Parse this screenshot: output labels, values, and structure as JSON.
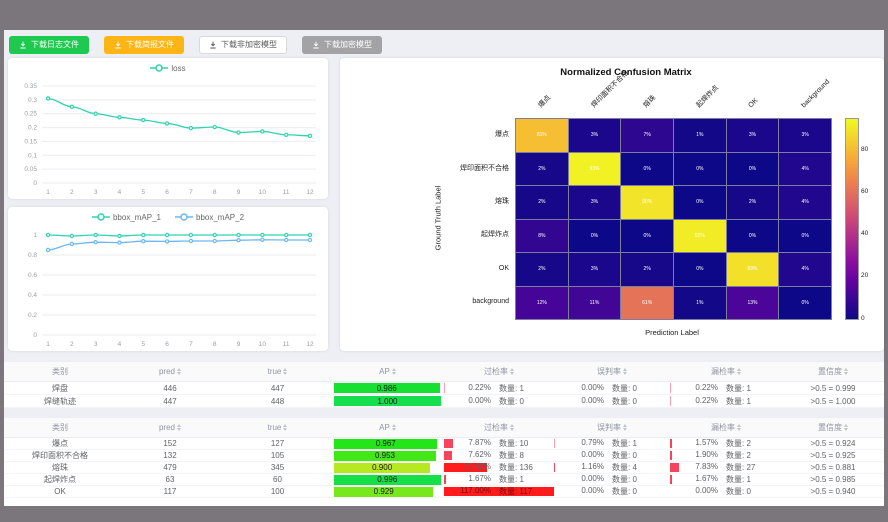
{
  "buttons": [
    {
      "name": "download-log-button",
      "label": "下载日志文件",
      "style": "green",
      "icon": "download-icon"
    },
    {
      "name": "download-report-button",
      "label": "下载简报文件",
      "style": "orange",
      "icon": "download-icon"
    },
    {
      "name": "download-unencrypted-model-button",
      "label": "下载非加密模型",
      "style": "white",
      "icon": "download-icon"
    },
    {
      "name": "download-encrypted-model-button",
      "label": "下载加密模型",
      "style": "gray",
      "icon": "download-icon"
    }
  ],
  "chart_data": [
    {
      "type": "line",
      "title": "",
      "xlabel": "",
      "ylabel": "",
      "x": [
        1,
        2,
        3,
        4,
        5,
        6,
        7,
        8,
        9,
        10,
        11,
        12
      ],
      "yticks": [
        0,
        0.05,
        0.1,
        0.15,
        0.2,
        0.25,
        0.3,
        0.35
      ],
      "ylim": [
        0,
        0.35
      ],
      "grid": "horizontal",
      "legend_position": "top",
      "series": [
        {
          "name": "loss",
          "color": "#2fd3b0",
          "values": [
            0.305,
            0.275,
            0.25,
            0.237,
            0.227,
            0.215,
            0.198,
            0.202,
            0.182,
            0.186,
            0.174,
            0.17
          ]
        }
      ]
    },
    {
      "type": "line",
      "title": "",
      "xlabel": "",
      "ylabel": "",
      "x": [
        1,
        2,
        3,
        4,
        5,
        6,
        7,
        8,
        9,
        10,
        11,
        12
      ],
      "yticks": [
        0,
        0.2,
        0.4,
        0.6,
        0.8,
        1
      ],
      "ylim": [
        0,
        1
      ],
      "grid": "horizontal",
      "legend_position": "top",
      "series": [
        {
          "name": "bbox_mAP_1",
          "color": "#2fd3b0",
          "values": [
            1,
            0.99,
            1,
            0.99,
            1,
            1,
            1,
            1,
            1,
            1,
            1,
            1
          ]
        },
        {
          "name": "bbox_mAP_2",
          "color": "#6ab7f5",
          "values": [
            0.85,
            0.91,
            0.928,
            0.924,
            0.938,
            0.936,
            0.94,
            0.94,
            0.948,
            0.952,
            0.95,
            0.95
          ]
        }
      ]
    },
    {
      "type": "heatmap",
      "title": "Normalized Confusion Matrix",
      "xlabel": "Prediction Label",
      "ylabel": "Ground Truth Label",
      "labels": [
        "爆点",
        "焊印面积不合格",
        "熔珠",
        "起焊炸点",
        "OK",
        "background"
      ],
      "matrix_pct": [
        [
          81,
          3,
          7,
          1,
          3,
          3
        ],
        [
          2,
          93,
          0,
          0,
          0,
          4
        ],
        [
          2,
          3,
          90,
          0,
          2,
          4
        ],
        [
          8,
          0,
          0,
          92,
          0,
          0
        ],
        [
          2,
          3,
          2,
          0,
          89,
          4
        ],
        [
          12,
          11,
          61,
          1,
          13,
          0
        ]
      ],
      "vmax": 95,
      "colormap": "plasma",
      "colorbar_ticks": [
        80,
        60,
        40,
        20,
        0
      ]
    }
  ],
  "tables": {
    "count_label": "数量:",
    "columns": [
      {
        "key": "cat",
        "label": "类别",
        "sortable": false
      },
      {
        "key": "pred",
        "label": "pred",
        "sortable": true
      },
      {
        "key": "true",
        "label": "true",
        "sortable": true
      },
      {
        "key": "ap",
        "label": "AP",
        "sortable": true
      },
      {
        "key": "over",
        "label": "过检率",
        "sortable": true
      },
      {
        "key": "mis",
        "label": "误判率",
        "sortable": true
      },
      {
        "key": "miss",
        "label": "漏检率",
        "sortable": true
      },
      {
        "key": "conf",
        "label": "置信度",
        "sortable": true
      }
    ],
    "groups": [
      {
        "rows": [
          {
            "cat": "焊盘",
            "pred": "446",
            "true": "447",
            "ap": "0.986",
            "over": {
              "pct": "0.22",
              "count": "1"
            },
            "mis": {
              "pct": "0.00",
              "count": "0"
            },
            "miss": {
              "pct": "0.22",
              "count": "1"
            },
            "conf": ">0.5 = 0.999"
          },
          {
            "cat": "焊缝轨迹",
            "pred": "447",
            "true": "448",
            "ap": "1.000",
            "over": {
              "pct": "0.00",
              "count": "0"
            },
            "mis": {
              "pct": "0.00",
              "count": "0"
            },
            "miss": {
              "pct": "0.22",
              "count": "1"
            },
            "conf": ">0.5 = 1.000"
          }
        ]
      },
      {
        "rows": [
          {
            "cat": "爆点",
            "pred": "152",
            "true": "127",
            "ap": "0.967",
            "over": {
              "pct": "7.87",
              "count": "10"
            },
            "mis": {
              "pct": "0.79",
              "count": "1"
            },
            "miss": {
              "pct": "1.57",
              "count": "2"
            },
            "conf": ">0.5 = 0.924"
          },
          {
            "cat": "焊印面积不合格",
            "pred": "132",
            "true": "105",
            "ap": "0.953",
            "over": {
              "pct": "7.62",
              "count": "8"
            },
            "mis": {
              "pct": "0.00",
              "count": "0"
            },
            "miss": {
              "pct": "1.90",
              "count": "2"
            },
            "conf": ">0.5 = 0.925"
          },
          {
            "cat": "熔珠",
            "pred": "479",
            "true": "345",
            "ap": "0.900",
            "over": {
              "pct": "39.42",
              "count": "136"
            },
            "mis": {
              "pct": "1.16",
              "count": "4"
            },
            "miss": {
              "pct": "7.83",
              "count": "27"
            },
            "conf": ">0.5 = 0.881"
          },
          {
            "cat": "起焊炸点",
            "pred": "63",
            "true": "60",
            "ap": "0.996",
            "over": {
              "pct": "1.67",
              "count": "1"
            },
            "mis": {
              "pct": "0.00",
              "count": "0"
            },
            "miss": {
              "pct": "1.67",
              "count": "1"
            },
            "conf": ">0.5 = 0.985"
          },
          {
            "cat": "OK",
            "pred": "117",
            "true": "100",
            "ap": "0.929",
            "over": {
              "pct": "117.00",
              "count": "117"
            },
            "mis": {
              "pct": "0.00",
              "count": "0"
            },
            "miss": {
              "pct": "0.00",
              "count": "0"
            },
            "conf": ">0.5 = 0.940"
          }
        ]
      }
    ]
  },
  "colors": {
    "topbar": "#7b757c",
    "page_bg": "#edeff4",
    "accent_green": "#1ec94f",
    "accent_orange": "#fdb515",
    "line_teal": "#2fd3b0",
    "line_blue": "#6ab7f5",
    "ap_bar_green": "#2ee04a",
    "rate_bar_red": "#ff1b1b"
  }
}
